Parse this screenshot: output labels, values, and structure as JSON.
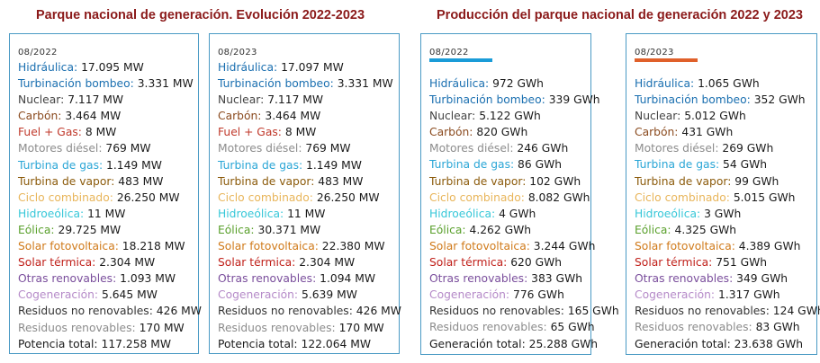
{
  "titles": {
    "capacity": "Parque nacional de generación. Evolución 2022-2023",
    "production": "Producción del parque nacional de generación 2022 y 2023"
  },
  "colors": {
    "title": "#8b1a1a",
    "border": "#4a9ac4",
    "bar_2022": "#1a9cd8",
    "bar_2023": "#e0602a",
    "hidraulica": "#1a6fb0",
    "turbinacion": "#1a6fb0",
    "nuclear": "#444444",
    "carbon": "#8a4a1e",
    "fuel_gas": "#c0392b",
    "motores": "#8c8c8c",
    "turbina_gas": "#2aa6d6",
    "turbina_vapor": "#8b5a0a",
    "ciclo": "#e8b55a",
    "hidroeolica": "#36c7d8",
    "eolica": "#5aa02c",
    "solar_fv": "#d07a1a",
    "solar_termica": "#c0201a",
    "otras": "#7a4e9c",
    "cogeneracion": "#b58ac8",
    "residuos_no": "#333333",
    "residuos_ren": "#8c8c8c",
    "total": "#1a1a1a"
  },
  "capacity_2022": {
    "period": "08/2022",
    "rows": [
      {
        "label": "Hidráulica:",
        "value": "17.095 MW"
      },
      {
        "label": "Turbinación bombeo:",
        "value": "3.331 MW"
      },
      {
        "label": "Nuclear:",
        "value": "7.117 MW"
      },
      {
        "label": "Carbón:",
        "value": "3.464 MW"
      },
      {
        "label": "Fuel + Gas:",
        "value": "8 MW"
      },
      {
        "label": "Motores diésel:",
        "value": "769 MW"
      },
      {
        "label": "Turbina de gas:",
        "value": "1.149 MW"
      },
      {
        "label": "Turbina de vapor:",
        "value": "483 MW"
      },
      {
        "label": "Ciclo combinado:",
        "value": "26.250 MW"
      },
      {
        "label": "Hidroeólica:",
        "value": "11 MW"
      },
      {
        "label": "Eólica:",
        "value": "29.725 MW"
      },
      {
        "label": "Solar fotovoltaica:",
        "value": "18.218 MW"
      },
      {
        "label": "Solar térmica:",
        "value": "2.304 MW"
      },
      {
        "label": "Otras renovables:",
        "value": "1.093 MW"
      },
      {
        "label": "Cogeneración:",
        "value": "5.645 MW"
      },
      {
        "label": "Residuos no renovables:",
        "value": "426 MW"
      },
      {
        "label": "Residuos renovables:",
        "value": "170 MW"
      },
      {
        "label": "Potencia total:",
        "value": "117.258 MW"
      }
    ]
  },
  "capacity_2023": {
    "period": "08/2023",
    "rows": [
      {
        "label": "Hidráulica:",
        "value": "17.097 MW"
      },
      {
        "label": "Turbinación bombeo:",
        "value": "3.331 MW"
      },
      {
        "label": "Nuclear:",
        "value": "7.117 MW"
      },
      {
        "label": "Carbón:",
        "value": "3.464 MW"
      },
      {
        "label": "Fuel + Gas:",
        "value": "8 MW"
      },
      {
        "label": "Motores diésel:",
        "value": "769 MW"
      },
      {
        "label": "Turbina de gas:",
        "value": "1.149 MW"
      },
      {
        "label": "Turbina de vapor:",
        "value": "483 MW"
      },
      {
        "label": "Ciclo combinado:",
        "value": "26.250 MW"
      },
      {
        "label": "Hidroeólica:",
        "value": "11 MW"
      },
      {
        "label": "Eólica:",
        "value": "30.371 MW"
      },
      {
        "label": "Solar fotovoltaica:",
        "value": "22.380 MW"
      },
      {
        "label": "Solar térmica:",
        "value": "2.304 MW"
      },
      {
        "label": "Otras renovables:",
        "value": "1.094 MW"
      },
      {
        "label": "Cogeneración:",
        "value": "5.639 MW"
      },
      {
        "label": "Residuos no renovables:",
        "value": "426 MW"
      },
      {
        "label": "Residuos renovables:",
        "value": "170 MW"
      },
      {
        "label": "Potencia total:",
        "value": "122.064 MW"
      }
    ]
  },
  "production_2022": {
    "period": "08/2022",
    "rows": [
      {
        "label": "Hidráulica:",
        "value": "972 GWh"
      },
      {
        "label": "Turbinación bombeo:",
        "value": "339 GWh"
      },
      {
        "label": "Nuclear:",
        "value": "5.122 GWh"
      },
      {
        "label": "Carbón:",
        "value": "820 GWh"
      },
      {
        "label": "Motores diésel:",
        "value": "246 GWh"
      },
      {
        "label": "Turbina de gas:",
        "value": "86 GWh"
      },
      {
        "label": "Turbina de vapor:",
        "value": "102 GWh"
      },
      {
        "label": "Ciclo combinado:",
        "value": "8.082 GWh"
      },
      {
        "label": "Hidroeólica:",
        "value": "4 GWh"
      },
      {
        "label": "Eólica:",
        "value": "4.262 GWh"
      },
      {
        "label": "Solar fotovoltaica:",
        "value": "3.244 GWh"
      },
      {
        "label": "Solar térmica:",
        "value": "620 GWh"
      },
      {
        "label": "Otras renovables:",
        "value": "383 GWh"
      },
      {
        "label": "Cogeneración:",
        "value": "776 GWh"
      },
      {
        "label": "Residuos no renovables:",
        "value": "165 GWh"
      },
      {
        "label": "Residuos renovables:",
        "value": "65 GWh"
      },
      {
        "label": "Generación total:",
        "value": "25.288 GWh"
      }
    ]
  },
  "production_2023": {
    "period": "08/2023",
    "rows": [
      {
        "label": "Hidráulica:",
        "value": "1.065 GWh"
      },
      {
        "label": "Turbinación bombeo:",
        "value": "352 GWh"
      },
      {
        "label": "Nuclear:",
        "value": "5.012 GWh"
      },
      {
        "label": "Carbón:",
        "value": "431 GWh"
      },
      {
        "label": "Motores diésel:",
        "value": "269 GWh"
      },
      {
        "label": "Turbina de gas:",
        "value": "54 GWh"
      },
      {
        "label": "Turbina de vapor:",
        "value": "99 GWh"
      },
      {
        "label": "Ciclo combinado:",
        "value": "5.015 GWh"
      },
      {
        "label": "Hidroeólica:",
        "value": "3 GWh"
      },
      {
        "label": "Eólica:",
        "value": "4.325 GWh"
      },
      {
        "label": "Solar fotovoltaica:",
        "value": "4.389 GWh"
      },
      {
        "label": "Solar térmica:",
        "value": "751 GWh"
      },
      {
        "label": "Otras renovables:",
        "value": "349 GWh"
      },
      {
        "label": "Cogeneración:",
        "value": "1.317 GWh"
      },
      {
        "label": "Residuos no renovables:",
        "value": "124 GWh"
      },
      {
        "label": "Residuos renovables:",
        "value": "83 GWh"
      },
      {
        "label": "Generación total:",
        "value": "23.638 GWh"
      }
    ]
  }
}
